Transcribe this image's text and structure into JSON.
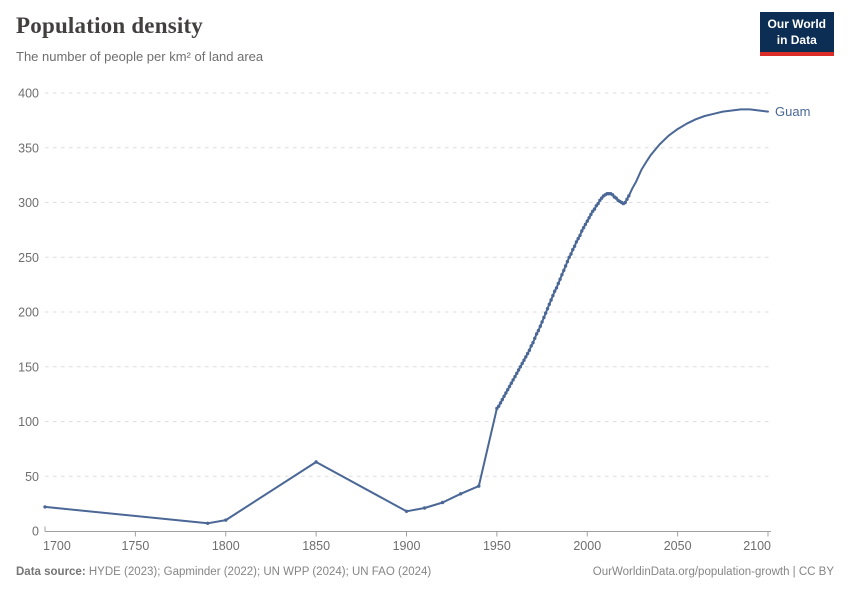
{
  "header": {
    "title": "Population density",
    "subtitle": "The number of people per km² of land area"
  },
  "logo": {
    "line1": "Our World",
    "line2": "in Data",
    "bg_color": "#0d2e54",
    "accent_color": "#dc2c27"
  },
  "chart_data": {
    "type": "line",
    "title": "Population density",
    "entity": "Guam",
    "end_label": "Guam",
    "xlabel": "",
    "ylabel": "",
    "xlim": [
      1700,
      2100
    ],
    "ylim": [
      0,
      400
    ],
    "xticks": [
      1700,
      1750,
      1800,
      1850,
      1900,
      1950,
      2000,
      2050,
      2100
    ],
    "yticks": [
      0,
      50,
      100,
      150,
      200,
      250,
      300,
      350,
      400
    ],
    "grid": "horizontal-dashed",
    "legend_position": "end-of-line",
    "series": [
      {
        "name": "Guam",
        "color": "#4a6796",
        "marker_until": 2023,
        "points": [
          [
            1700,
            22
          ],
          [
            1790,
            7
          ],
          [
            1800,
            10
          ],
          [
            1850,
            63
          ],
          [
            1900,
            18
          ],
          [
            1910,
            21
          ],
          [
            1920,
            26
          ],
          [
            1930,
            34
          ],
          [
            1940,
            41
          ],
          [
            1950,
            112
          ],
          [
            1951,
            114
          ],
          [
            1952,
            117
          ],
          [
            1953,
            120
          ],
          [
            1954,
            123
          ],
          [
            1955,
            126
          ],
          [
            1956,
            129
          ],
          [
            1957,
            132
          ],
          [
            1958,
            135
          ],
          [
            1959,
            138
          ],
          [
            1960,
            141
          ],
          [
            1961,
            144
          ],
          [
            1962,
            147
          ],
          [
            1963,
            150
          ],
          [
            1964,
            153
          ],
          [
            1965,
            156
          ],
          [
            1966,
            159
          ],
          [
            1967,
            162
          ],
          [
            1968,
            165
          ],
          [
            1969,
            169
          ],
          [
            1970,
            172
          ],
          [
            1971,
            176
          ],
          [
            1972,
            180
          ],
          [
            1973,
            183
          ],
          [
            1974,
            187
          ],
          [
            1975,
            191
          ],
          [
            1976,
            195
          ],
          [
            1977,
            199
          ],
          [
            1978,
            203
          ],
          [
            1979,
            207
          ],
          [
            1980,
            211
          ],
          [
            1981,
            215
          ],
          [
            1982,
            219
          ],
          [
            1983,
            222
          ],
          [
            1984,
            226
          ],
          [
            1985,
            230
          ],
          [
            1986,
            234
          ],
          [
            1987,
            238
          ],
          [
            1988,
            242
          ],
          [
            1989,
            246
          ],
          [
            1990,
            250
          ],
          [
            1991,
            253
          ],
          [
            1992,
            257
          ],
          [
            1993,
            260
          ],
          [
            1994,
            264
          ],
          [
            1995,
            267
          ],
          [
            1996,
            270
          ],
          [
            1997,
            274
          ],
          [
            1998,
            277
          ],
          [
            1999,
            280
          ],
          [
            2000,
            283
          ],
          [
            2001,
            286
          ],
          [
            2002,
            289
          ],
          [
            2003,
            292
          ],
          [
            2004,
            294
          ],
          [
            2005,
            297
          ],
          [
            2006,
            299
          ],
          [
            2007,
            302
          ],
          [
            2008,
            304
          ],
          [
            2009,
            306
          ],
          [
            2010,
            307
          ],
          [
            2011,
            308
          ],
          [
            2012,
            308
          ],
          [
            2013,
            308
          ],
          [
            2014,
            307
          ],
          [
            2015,
            305
          ],
          [
            2016,
            304
          ],
          [
            2017,
            302
          ],
          [
            2018,
            301
          ],
          [
            2019,
            300
          ],
          [
            2020,
            299
          ],
          [
            2021,
            300
          ],
          [
            2022,
            303
          ],
          [
            2023,
            306
          ],
          [
            2025,
            313
          ],
          [
            2027,
            319
          ],
          [
            2030,
            330
          ],
          [
            2033,
            338
          ],
          [
            2035,
            343
          ],
          [
            2040,
            353
          ],
          [
            2045,
            361
          ],
          [
            2050,
            367
          ],
          [
            2055,
            372
          ],
          [
            2060,
            376
          ],
          [
            2065,
            379
          ],
          [
            2070,
            381
          ],
          [
            2075,
            383
          ],
          [
            2080,
            384
          ],
          [
            2085,
            385
          ],
          [
            2090,
            385
          ],
          [
            2095,
            384
          ],
          [
            2100,
            383
          ]
        ]
      }
    ],
    "colors": {
      "grid": "#dedede",
      "axis": "#a0a0a0",
      "tick_label": "#6e6e6e"
    }
  },
  "footer": {
    "source_label": "Data source:",
    "source_text": " HYDE (2023); Gapminder (2022); UN WPP (2024); UN FAO (2024)",
    "credit": "OurWorldinData.org/population-growth | CC BY"
  }
}
